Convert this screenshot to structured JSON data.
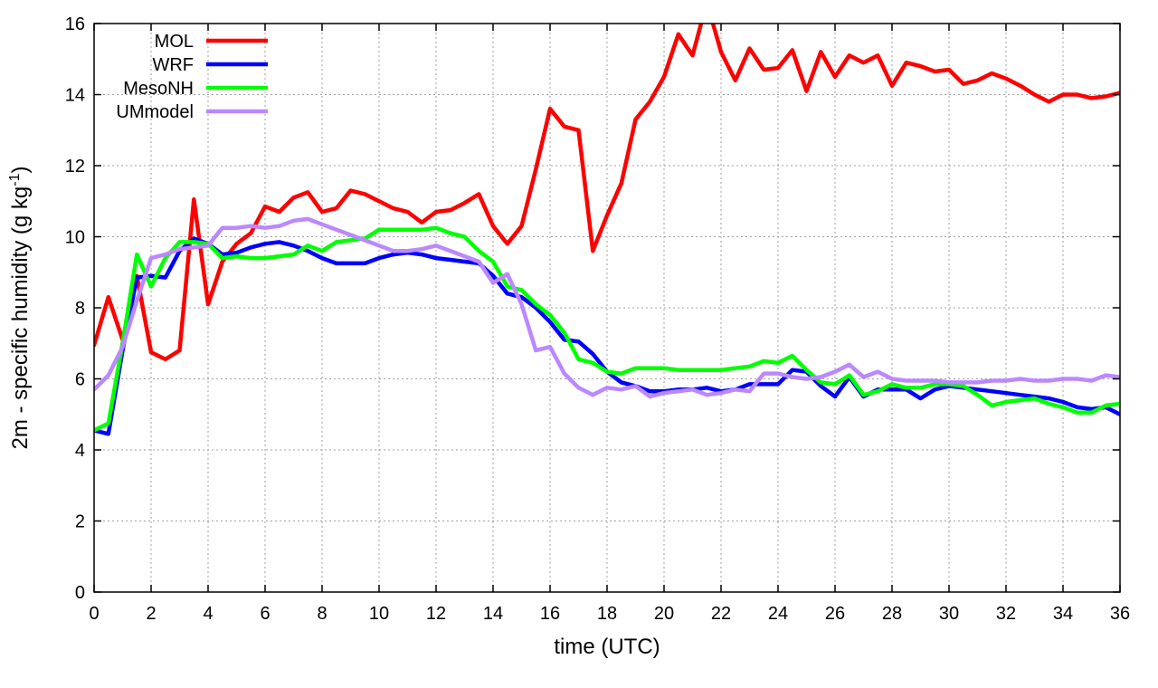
{
  "chart_data": {
    "type": "line",
    "xlabel": "time (UTC)",
    "ylabel_main": "2m - specific humidity (g kg",
    "ylabel_sup": "-1",
    "ylabel_close": ")",
    "xlim": [
      0,
      36
    ],
    "ylim": [
      0,
      16
    ],
    "xticks": [
      0,
      2,
      4,
      6,
      8,
      10,
      12,
      14,
      16,
      18,
      20,
      22,
      24,
      26,
      28,
      30,
      32,
      34,
      36
    ],
    "yticks": [
      0,
      2,
      4,
      6,
      8,
      10,
      12,
      14,
      16
    ],
    "grid": true,
    "legend_position": "top-left",
    "series": [
      {
        "name": "MOL",
        "color": "#ff0000",
        "x": [
          0,
          0.5,
          1,
          1.5,
          2,
          2.5,
          3,
          3.5,
          4,
          4.5,
          5,
          5.5,
          6,
          6.5,
          7,
          7.5,
          8,
          8.5,
          9,
          9.5,
          10,
          10.5,
          11,
          11.5,
          12,
          12.5,
          13,
          13.5,
          14,
          14.5,
          15,
          15.5,
          16,
          16.5,
          17,
          17.5,
          18,
          18.5,
          19,
          19.5,
          20,
          20.5,
          21,
          21.5,
          22,
          22.5,
          23,
          23.5,
          24,
          24.5,
          25,
          25.5,
          26,
          26.5,
          27,
          27.5,
          28,
          28.5,
          29,
          29.5,
          30,
          30.5,
          31,
          31.5,
          32,
          32.5,
          33,
          33.5,
          34,
          34.5,
          35,
          35.5,
          36
        ],
        "values": [
          6.95,
          8.3,
          7.1,
          8.9,
          6.75,
          6.55,
          6.8,
          11.05,
          8.1,
          9.3,
          9.8,
          10.1,
          10.85,
          10.7,
          11.1,
          11.25,
          10.7,
          10.8,
          11.3,
          11.2,
          11.0,
          10.8,
          10.7,
          10.4,
          10.7,
          10.75,
          10.95,
          11.2,
          10.3,
          9.8,
          10.3,
          11.9,
          13.6,
          13.1,
          13.0,
          9.6,
          10.6,
          11.5,
          13.3,
          13.8,
          14.5,
          15.7,
          15.1,
          16.6,
          15.2,
          14.4,
          15.3,
          14.7,
          14.75,
          15.25,
          14.1,
          15.2,
          14.5,
          15.1,
          14.9,
          15.1,
          14.25,
          14.9,
          14.8,
          14.65,
          14.7,
          14.3,
          14.4,
          14.6,
          14.45,
          14.25,
          14.0,
          13.8,
          14.0,
          14.0,
          13.9,
          13.95,
          14.05
        ]
      },
      {
        "name": "WRF",
        "color": "#0000ff",
        "x": [
          0,
          0.5,
          1,
          1.5,
          2,
          2.5,
          3,
          3.5,
          4,
          4.5,
          5,
          5.5,
          6,
          6.5,
          7,
          7.5,
          8,
          8.5,
          9,
          9.5,
          10,
          10.5,
          11,
          11.5,
          12,
          12.5,
          13,
          13.5,
          14,
          14.5,
          15,
          15.5,
          16,
          16.5,
          17,
          17.5,
          18,
          18.5,
          19,
          19.5,
          20,
          20.5,
          21,
          21.5,
          22,
          22.5,
          23,
          23.5,
          24,
          24.5,
          25,
          25.5,
          26,
          26.5,
          27,
          27.5,
          28,
          28.5,
          29,
          29.5,
          30,
          30.5,
          31,
          31.5,
          32,
          32.5,
          33,
          33.5,
          34,
          34.5,
          35,
          35.5,
          36
        ],
        "values": [
          4.55,
          4.45,
          6.8,
          8.85,
          8.9,
          8.85,
          9.6,
          9.95,
          9.8,
          9.5,
          9.55,
          9.7,
          9.8,
          9.85,
          9.75,
          9.6,
          9.4,
          9.25,
          9.25,
          9.25,
          9.4,
          9.5,
          9.55,
          9.5,
          9.4,
          9.35,
          9.3,
          9.25,
          8.9,
          8.4,
          8.3,
          8.0,
          7.6,
          7.1,
          7.05,
          6.7,
          6.2,
          5.9,
          5.8,
          5.65,
          5.65,
          5.7,
          5.7,
          5.75,
          5.65,
          5.7,
          5.85,
          5.85,
          5.85,
          6.25,
          6.2,
          5.8,
          5.5,
          6.05,
          5.5,
          5.7,
          5.7,
          5.7,
          5.45,
          5.7,
          5.8,
          5.75,
          5.7,
          5.65,
          5.6,
          5.55,
          5.5,
          5.45,
          5.35,
          5.2,
          5.15,
          5.2,
          5.0
        ]
      },
      {
        "name": "MesoNH",
        "color": "#00ff00",
        "x": [
          0,
          0.5,
          1,
          1.5,
          2,
          2.5,
          3,
          3.5,
          4,
          4.5,
          5,
          5.5,
          6,
          6.5,
          7,
          7.5,
          8,
          8.5,
          9,
          9.5,
          10,
          10.5,
          11,
          11.5,
          12,
          12.5,
          13,
          13.5,
          14,
          14.5,
          15,
          15.5,
          16,
          16.5,
          17,
          17.5,
          18,
          18.5,
          19,
          19.5,
          20,
          20.5,
          21,
          21.5,
          22,
          22.5,
          23,
          23.5,
          24,
          24.5,
          25,
          25.5,
          26,
          26.5,
          27,
          27.5,
          28,
          28.5,
          29,
          29.5,
          30,
          30.5,
          31,
          31.5,
          32,
          32.5,
          33,
          33.5,
          34,
          34.5,
          35,
          35.5,
          36
        ],
        "values": [
          4.55,
          4.75,
          7.0,
          9.5,
          8.6,
          9.4,
          9.85,
          9.85,
          9.8,
          9.4,
          9.45,
          9.4,
          9.4,
          9.45,
          9.5,
          9.75,
          9.6,
          9.85,
          9.9,
          9.95,
          10.2,
          10.2,
          10.2,
          10.2,
          10.25,
          10.1,
          10.0,
          9.6,
          9.3,
          8.6,
          8.5,
          8.1,
          7.8,
          7.3,
          6.55,
          6.45,
          6.2,
          6.15,
          6.3,
          6.3,
          6.3,
          6.25,
          6.25,
          6.25,
          6.25,
          6.3,
          6.35,
          6.5,
          6.45,
          6.65,
          6.25,
          5.9,
          5.85,
          6.1,
          5.55,
          5.65,
          5.85,
          5.75,
          5.75,
          5.85,
          5.85,
          5.8,
          5.55,
          5.25,
          5.35,
          5.4,
          5.45,
          5.3,
          5.2,
          5.05,
          5.05,
          5.25,
          5.3
        ]
      },
      {
        "name": "UMmodel",
        "color": "#bb88ff",
        "x": [
          0,
          0.5,
          1,
          1.5,
          2,
          2.5,
          3,
          3.5,
          4,
          4.5,
          5,
          5.5,
          6,
          6.5,
          7,
          7.5,
          8,
          8.5,
          9,
          9.5,
          10,
          10.5,
          11,
          11.5,
          12,
          12.5,
          13,
          13.5,
          14,
          14.5,
          15,
          15.5,
          16,
          16.5,
          17,
          17.5,
          18,
          18.5,
          19,
          19.5,
          20,
          20.5,
          21,
          21.5,
          22,
          22.5,
          23,
          23.5,
          24,
          24.5,
          25,
          25.5,
          26,
          26.5,
          27,
          27.5,
          28,
          28.5,
          29,
          29.5,
          30,
          30.5,
          31,
          31.5,
          32,
          32.5,
          33,
          33.5,
          34,
          34.5,
          35,
          35.5,
          36
        ],
        "values": [
          5.7,
          6.1,
          6.9,
          8.2,
          9.4,
          9.5,
          9.65,
          9.7,
          9.75,
          10.25,
          10.25,
          10.3,
          10.25,
          10.3,
          10.45,
          10.5,
          10.35,
          10.2,
          10.05,
          9.9,
          9.75,
          9.6,
          9.6,
          9.65,
          9.75,
          9.6,
          9.45,
          9.3,
          8.7,
          8.95,
          8.1,
          6.8,
          6.9,
          6.15,
          5.75,
          5.55,
          5.75,
          5.7,
          5.8,
          5.5,
          5.6,
          5.65,
          5.7,
          5.55,
          5.6,
          5.7,
          5.65,
          6.15,
          6.15,
          6.05,
          6.0,
          6.05,
          6.2,
          6.4,
          6.05,
          6.2,
          6.0,
          5.95,
          5.95,
          5.95,
          5.9,
          5.9,
          5.9,
          5.95,
          5.95,
          6.0,
          5.95,
          5.95,
          6.0,
          6.0,
          5.95,
          6.1,
          6.05
        ]
      }
    ]
  }
}
